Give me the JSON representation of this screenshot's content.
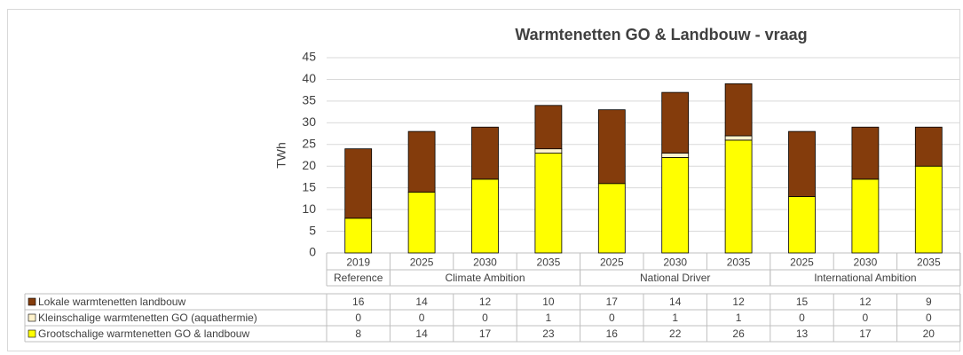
{
  "chart_data": {
    "type": "bar",
    "stacked": true,
    "title": "Warmtenetten GO & Landbouw - vraag",
    "y_label": "TWh",
    "groups": [
      {
        "name": "Reference",
        "categories": [
          "2019"
        ]
      },
      {
        "name": "Climate Ambition",
        "categories": [
          "2025",
          "2030",
          "2035"
        ]
      },
      {
        "name": "National Driver",
        "categories": [
          "2025",
          "2030",
          "2035"
        ]
      },
      {
        "name": "International Ambition",
        "categories": [
          "2025",
          "2030",
          "2035"
        ]
      }
    ],
    "series": [
      {
        "name": "Lokale warmtenetten landbouw",
        "color": "#843c0c",
        "values": [
          16,
          14,
          12,
          10,
          17,
          14,
          12,
          15,
          12,
          9
        ]
      },
      {
        "name": "Kleinschalige warmtenetten GO (aquathermie)",
        "color": "#fff2cc",
        "values": [
          0,
          0,
          0,
          1,
          0,
          1,
          1,
          0,
          0,
          0
        ]
      },
      {
        "name": "Grootschalige warmtenetten GO & landbouw",
        "color": "#ffff00",
        "values": [
          8,
          14,
          17,
          23,
          16,
          22,
          26,
          13,
          17,
          20
        ]
      }
    ],
    "ylim": [
      0,
      45
    ],
    "yticks": [
      0,
      5,
      10,
      15,
      20,
      25,
      30,
      35,
      40,
      45
    ],
    "grid": true
  }
}
